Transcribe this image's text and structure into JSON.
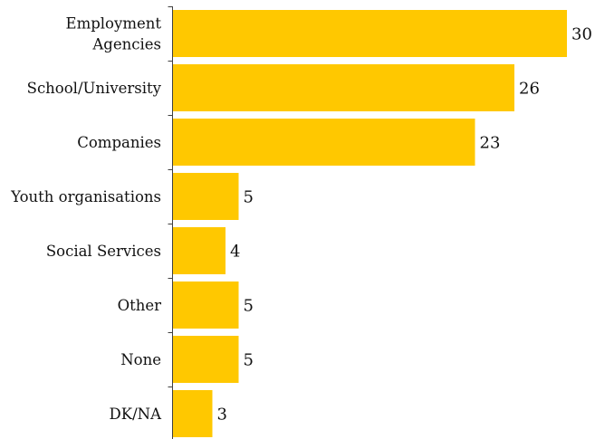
{
  "chart_data": {
    "type": "bar",
    "orientation": "horizontal",
    "categories": [
      "Employment Agencies",
      "School/University",
      "Companies",
      "Youth organisations",
      "Social Services",
      "Other",
      "None",
      "DK/NA"
    ],
    "values": [
      30,
      26,
      23,
      5,
      4,
      5,
      5,
      3
    ],
    "xlim": [
      0,
      30
    ],
    "value_axis_visible": false,
    "show_data_labels": true,
    "grid": false,
    "legend": "none",
    "colors": {
      "bar": "#FFC800",
      "axis": "#404040",
      "text": "#111111"
    }
  }
}
